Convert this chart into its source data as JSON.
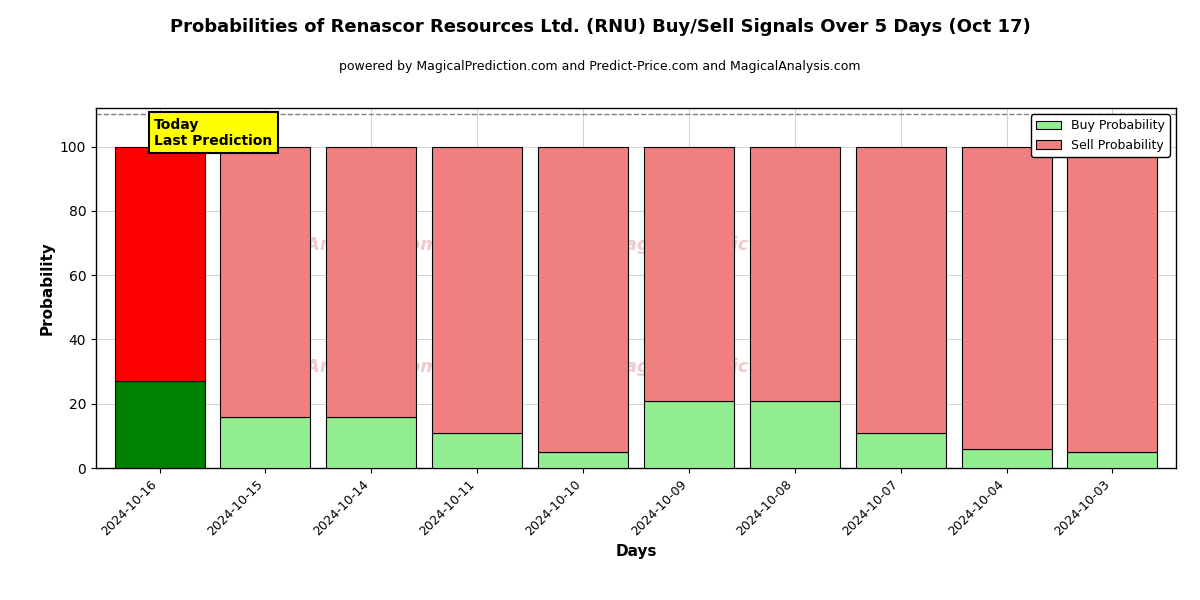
{
  "title": "Probabilities of Renascor Resources Ltd. (RNU) Buy/Sell Signals Over 5 Days (Oct 17)",
  "subtitle": "powered by MagicalPrediction.com and Predict-Price.com and MagicalAnalysis.com",
  "xlabel": "Days",
  "ylabel": "Probability",
  "dates": [
    "2024-10-16",
    "2024-10-15",
    "2024-10-14",
    "2024-10-11",
    "2024-10-10",
    "2024-10-09",
    "2024-10-08",
    "2024-10-07",
    "2024-10-04",
    "2024-10-03"
  ],
  "buy_values": [
    27,
    16,
    16,
    11,
    5,
    21,
    21,
    11,
    6,
    5
  ],
  "sell_values": [
    73,
    84,
    84,
    89,
    95,
    79,
    79,
    89,
    94,
    95
  ],
  "today_buy_color": "#008000",
  "today_sell_color": "#FF0000",
  "buy_color": "#90EE90",
  "sell_color": "#F08080",
  "today_label_bg": "#FFFF00",
  "today_label_text": "Today\nLast Prediction",
  "legend_buy": "Buy Probability",
  "legend_sell": "Sell Probability",
  "ylim": [
    0,
    112
  ],
  "dashed_line_y": 110,
  "bar_width": 0.85
}
